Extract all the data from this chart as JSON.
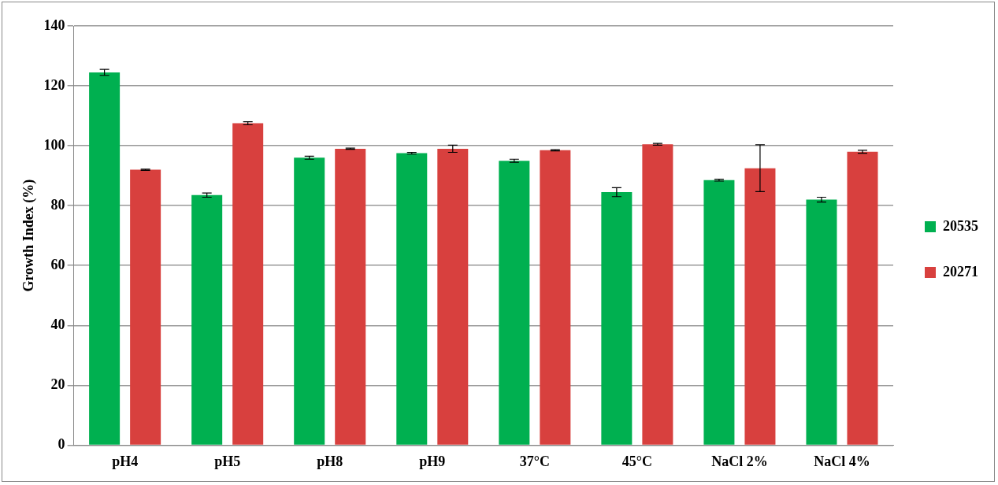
{
  "chart_data": {
    "type": "bar",
    "ylabel": "Growth Index (%)",
    "categories": [
      "pH4",
      "pH5",
      "pH8",
      "pH9",
      "37°C",
      "45°C",
      "NaCl 2%",
      "NaCl 4%"
    ],
    "series": [
      {
        "name": "20535",
        "color": "#00b050",
        "values": [
          124.5,
          83.5,
          96,
          97.5,
          95,
          84.5,
          88.5,
          82
        ],
        "errors": [
          1,
          0.7,
          0.5,
          0.3,
          0.5,
          1.5,
          0.3,
          0.8
        ]
      },
      {
        "name": "20271",
        "color": "#d8403e",
        "values": [
          92,
          107.5,
          99,
          99,
          98.5,
          100.5,
          92.5,
          98
        ],
        "errors": [
          0.2,
          0.5,
          0.2,
          1.2,
          0.2,
          0.3,
          7.8,
          0.5
        ]
      }
    ],
    "ylim": [
      0,
      140
    ],
    "yticks": [
      0,
      20,
      40,
      60,
      80,
      100,
      120,
      140
    ],
    "grid": "y",
    "legend": "right"
  }
}
